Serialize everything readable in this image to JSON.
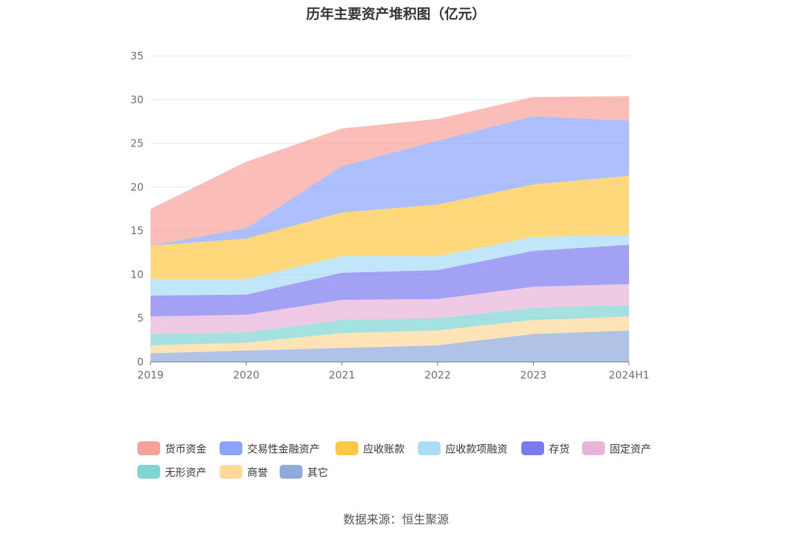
{
  "chart_data": {
    "type": "area",
    "stacked": true,
    "title": "历年主要资产堆积图（亿元）",
    "x": [
      "2019",
      "2020",
      "2021",
      "2022",
      "2023",
      "2024H1"
    ],
    "y_ticks": [
      "0",
      "5",
      "10",
      "15",
      "20",
      "25",
      "30",
      "35"
    ],
    "ylim": [
      0,
      35
    ],
    "grid": true,
    "legend_position": "bottom",
    "series": [
      {
        "name": "其它",
        "color": "#8faadc",
        "values": [
          1.0,
          1.3,
          1.6,
          1.9,
          3.2,
          3.6
        ]
      },
      {
        "name": "商誉",
        "color": "#ffd999",
        "values": [
          0.9,
          0.9,
          1.7,
          1.7,
          1.6,
          1.6
        ]
      },
      {
        "name": "无形资产",
        "color": "#80d4d4",
        "values": [
          1.3,
          1.2,
          1.5,
          1.4,
          1.4,
          1.3
        ]
      },
      {
        "name": "固定资产",
        "color": "#e8b4d9",
        "values": [
          2.0,
          2.0,
          2.3,
          2.2,
          2.4,
          2.4
        ]
      },
      {
        "name": "存货",
        "color": "#7b79f0",
        "values": [
          2.4,
          2.3,
          3.1,
          3.3,
          4.1,
          4.5
        ]
      },
      {
        "name": "应收款项融资",
        "color": "#a8dcf7",
        "values": [
          1.9,
          1.8,
          1.9,
          1.6,
          1.6,
          1.1
        ]
      },
      {
        "name": "应收账款",
        "color": "#ffc844",
        "values": [
          3.8,
          4.6,
          5.0,
          5.9,
          6.0,
          6.8
        ]
      },
      {
        "name": "交易性金融资产",
        "color": "#8aa4fb",
        "values": [
          0.0,
          1.2,
          5.3,
          7.3,
          7.8,
          6.3
        ]
      },
      {
        "name": "货币资金",
        "color": "#f9a199",
        "values": [
          4.2,
          7.6,
          4.3,
          2.5,
          2.2,
          2.8
        ]
      }
    ],
    "legend_order": [
      "货币资金",
      "交易性金融资产",
      "应收账款",
      "应收款项融资",
      "存货",
      "固定资产",
      "无形资产",
      "商誉",
      "其它"
    ]
  },
  "source": "数据来源：恒生聚源"
}
